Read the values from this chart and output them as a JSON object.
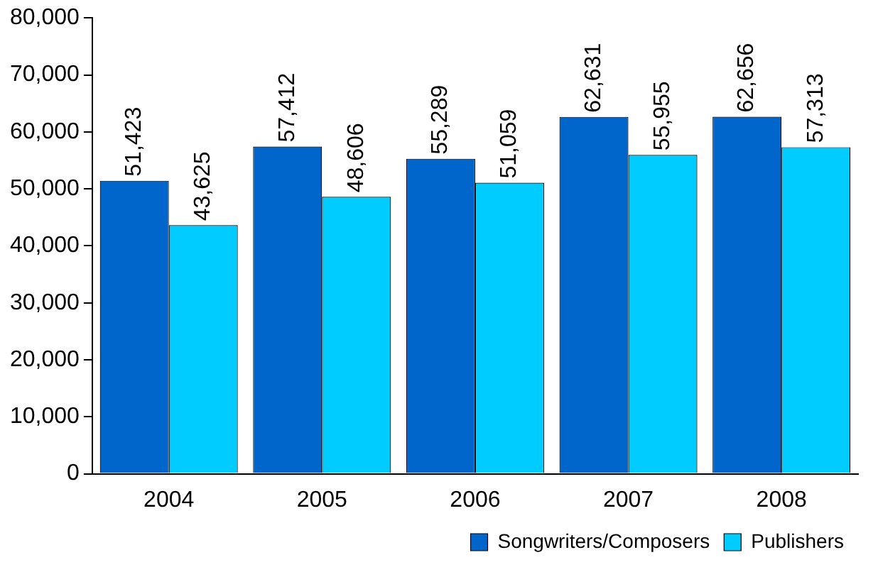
{
  "chart_data": {
    "type": "bar",
    "categories": [
      "2004",
      "2005",
      "2006",
      "2007",
      "2008"
    ],
    "series": [
      {
        "name": "Songwriters/Composers",
        "color": "#0066cc",
        "values": [
          51423,
          57412,
          55289,
          62631,
          62656
        ],
        "value_labels": [
          "51,423",
          "57,412",
          "55,289",
          "62,631",
          "62,656"
        ]
      },
      {
        "name": "Publishers",
        "color": "#00ccff",
        "values": [
          43625,
          48606,
          51059,
          55955,
          57313
        ],
        "value_labels": [
          "43,625",
          "48,606",
          "51,059",
          "55,955",
          "57,313"
        ]
      }
    ],
    "ylim": [
      0,
      80000
    ],
    "yticks": [
      0,
      {
        "value": 10000,
        "label": "10,000"
      },
      {
        "value": 20000,
        "label": "20,000"
      },
      {
        "value": 30000,
        "label": "30,000"
      },
      {
        "value": 40000,
        "label": "40,000"
      },
      {
        "value": 50000,
        "label": "50,000"
      },
      {
        "value": 60000,
        "label": "60,000"
      },
      {
        "value": 70000,
        "label": "70,000"
      },
      {
        "value": 80000,
        "label": "80,000"
      }
    ],
    "legend": "bottom",
    "grid": false
  }
}
